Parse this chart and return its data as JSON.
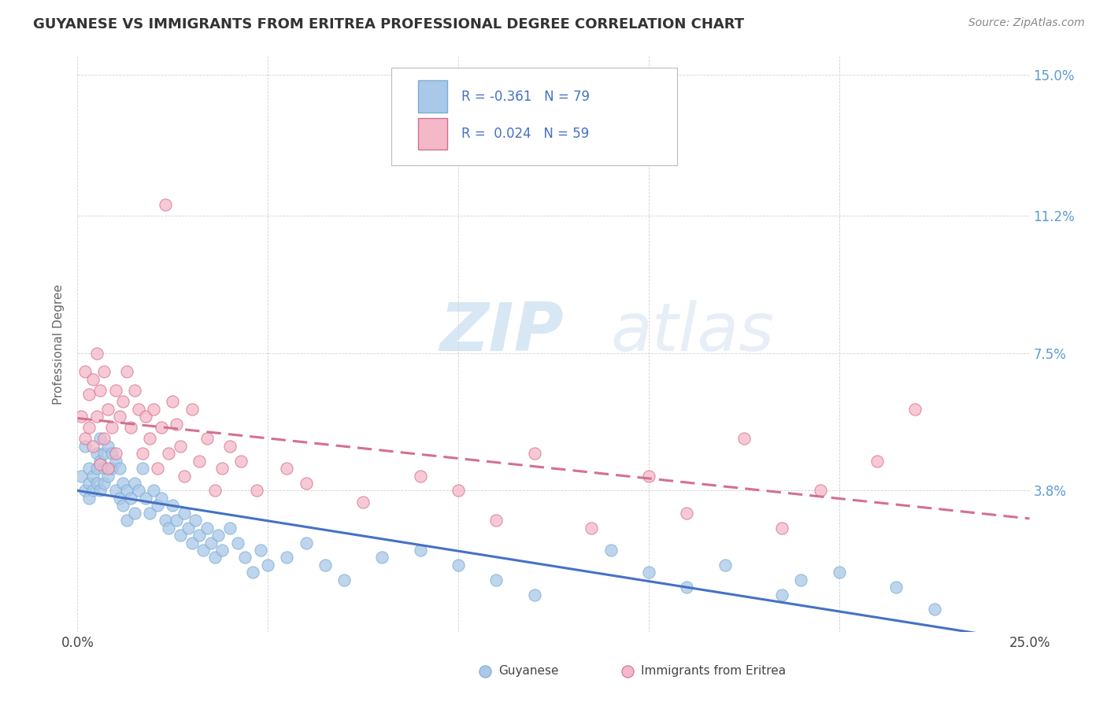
{
  "title": "GUYANESE VS IMMIGRANTS FROM ERITREA PROFESSIONAL DEGREE CORRELATION CHART",
  "source": "Source: ZipAtlas.com",
  "ylabel": "Professional Degree",
  "xlim": [
    0.0,
    0.25
  ],
  "ylim": [
    0.0,
    0.155
  ],
  "xtick_positions": [
    0.0,
    0.05,
    0.1,
    0.15,
    0.2,
    0.25
  ],
  "xticklabels": [
    "0.0%",
    "",
    "",
    "",
    "",
    "25.0%"
  ],
  "ytick_positions": [
    0.0,
    0.038,
    0.075,
    0.112,
    0.15
  ],
  "ytick_labels": [
    "",
    "3.8%",
    "7.5%",
    "11.2%",
    "15.0%"
  ],
  "series": [
    {
      "name": "Guyanese",
      "R": -0.361,
      "N": 79,
      "color": "#aac8e8",
      "edge_color": "#7aadd4",
      "line_color": "#4472c4",
      "line_style": "solid"
    },
    {
      "name": "Immigrants from Eritrea",
      "R": 0.024,
      "N": 59,
      "color": "#f4b8c8",
      "edge_color": "#d47090",
      "line_color": "#d47090",
      "line_style": "dashed"
    }
  ],
  "background_color": "#ffffff",
  "guyanese_x": [
    0.001,
    0.002,
    0.002,
    0.003,
    0.003,
    0.003,
    0.004,
    0.004,
    0.005,
    0.005,
    0.005,
    0.006,
    0.006,
    0.006,
    0.007,
    0.007,
    0.007,
    0.008,
    0.008,
    0.009,
    0.009,
    0.01,
    0.01,
    0.011,
    0.011,
    0.012,
    0.012,
    0.013,
    0.013,
    0.014,
    0.015,
    0.015,
    0.016,
    0.017,
    0.018,
    0.019,
    0.02,
    0.021,
    0.022,
    0.023,
    0.024,
    0.025,
    0.026,
    0.027,
    0.028,
    0.029,
    0.03,
    0.031,
    0.032,
    0.033,
    0.034,
    0.035,
    0.036,
    0.037,
    0.038,
    0.04,
    0.042,
    0.044,
    0.046,
    0.048,
    0.05,
    0.055,
    0.06,
    0.065,
    0.07,
    0.08,
    0.09,
    0.1,
    0.11,
    0.12,
    0.14,
    0.15,
    0.16,
    0.17,
    0.185,
    0.19,
    0.2,
    0.215,
    0.225
  ],
  "guyanese_y": [
    0.042,
    0.05,
    0.038,
    0.044,
    0.04,
    0.036,
    0.042,
    0.038,
    0.048,
    0.044,
    0.04,
    0.052,
    0.046,
    0.038,
    0.048,
    0.044,
    0.04,
    0.05,
    0.042,
    0.048,
    0.044,
    0.046,
    0.038,
    0.044,
    0.036,
    0.04,
    0.034,
    0.038,
    0.03,
    0.036,
    0.04,
    0.032,
    0.038,
    0.044,
    0.036,
    0.032,
    0.038,
    0.034,
    0.036,
    0.03,
    0.028,
    0.034,
    0.03,
    0.026,
    0.032,
    0.028,
    0.024,
    0.03,
    0.026,
    0.022,
    0.028,
    0.024,
    0.02,
    0.026,
    0.022,
    0.028,
    0.024,
    0.02,
    0.016,
    0.022,
    0.018,
    0.02,
    0.024,
    0.018,
    0.014,
    0.02,
    0.022,
    0.018,
    0.014,
    0.01,
    0.022,
    0.016,
    0.012,
    0.018,
    0.01,
    0.014,
    0.016,
    0.012,
    0.006
  ],
  "eritrea_x": [
    0.001,
    0.002,
    0.002,
    0.003,
    0.003,
    0.004,
    0.004,
    0.005,
    0.005,
    0.006,
    0.006,
    0.007,
    0.007,
    0.008,
    0.008,
    0.009,
    0.01,
    0.01,
    0.011,
    0.012,
    0.013,
    0.014,
    0.015,
    0.016,
    0.017,
    0.018,
    0.019,
    0.02,
    0.021,
    0.022,
    0.023,
    0.024,
    0.025,
    0.026,
    0.027,
    0.028,
    0.03,
    0.032,
    0.034,
    0.036,
    0.038,
    0.04,
    0.043,
    0.047,
    0.055,
    0.06,
    0.075,
    0.09,
    0.1,
    0.11,
    0.12,
    0.135,
    0.15,
    0.16,
    0.175,
    0.185,
    0.195,
    0.21,
    0.22
  ],
  "eritrea_y": [
    0.058,
    0.07,
    0.052,
    0.064,
    0.055,
    0.068,
    0.05,
    0.075,
    0.058,
    0.065,
    0.045,
    0.07,
    0.052,
    0.06,
    0.044,
    0.055,
    0.065,
    0.048,
    0.058,
    0.062,
    0.07,
    0.055,
    0.065,
    0.06,
    0.048,
    0.058,
    0.052,
    0.06,
    0.044,
    0.055,
    0.115,
    0.048,
    0.062,
    0.056,
    0.05,
    0.042,
    0.06,
    0.046,
    0.052,
    0.038,
    0.044,
    0.05,
    0.046,
    0.038,
    0.044,
    0.04,
    0.035,
    0.042,
    0.038,
    0.03,
    0.048,
    0.028,
    0.042,
    0.032,
    0.052,
    0.028,
    0.038,
    0.046,
    0.06
  ]
}
